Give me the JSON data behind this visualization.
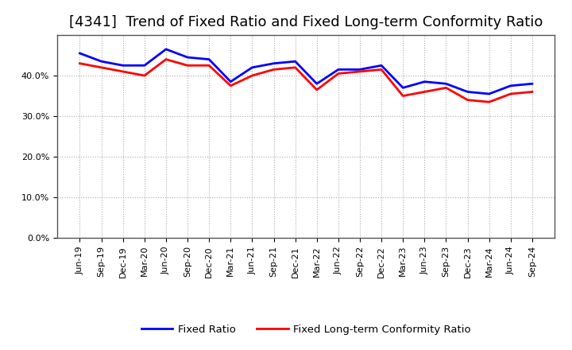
{
  "title": "[4341]  Trend of Fixed Ratio and Fixed Long-term Conformity Ratio",
  "x_labels": [
    "Jun-19",
    "Sep-19",
    "Dec-19",
    "Mar-20",
    "Jun-20",
    "Sep-20",
    "Dec-20",
    "Mar-21",
    "Jun-21",
    "Sep-21",
    "Dec-21",
    "Mar-22",
    "Jun-22",
    "Sep-22",
    "Dec-22",
    "Mar-23",
    "Jun-23",
    "Sep-23",
    "Dec-23",
    "Mar-24",
    "Jun-24",
    "Sep-24"
  ],
  "fixed_ratio": [
    45.5,
    43.5,
    42.5,
    42.5,
    46.5,
    44.5,
    44.0,
    38.5,
    42.0,
    43.0,
    43.5,
    38.0,
    41.5,
    41.5,
    42.5,
    37.0,
    38.5,
    38.0,
    36.0,
    35.5,
    37.5,
    38.0
  ],
  "fixed_longterm_ratio": [
    43.0,
    42.0,
    41.0,
    40.0,
    44.0,
    42.5,
    42.5,
    37.5,
    40.0,
    41.5,
    42.0,
    36.5,
    40.5,
    41.0,
    41.5,
    35.0,
    36.0,
    37.0,
    34.0,
    33.5,
    35.5,
    36.0
  ],
  "fixed_ratio_color": "#0000FF",
  "fixed_longterm_color": "#FF0000",
  "background_color": "#FFFFFF",
  "plot_bg_color": "#FFFFFF",
  "grid_color": "#AAAAAA",
  "ylim": [
    0,
    50
  ],
  "yticks": [
    0,
    10,
    20,
    30,
    40
  ],
  "ytick_labels": [
    "0.0%",
    "10.0%",
    "20.0%",
    "30.0%",
    "40.0%"
  ],
  "legend_fixed": "Fixed Ratio",
  "legend_longterm": "Fixed Long-term Conformity Ratio",
  "title_fontsize": 13,
  "tick_fontsize": 8,
  "legend_fontsize": 9.5,
  "linewidth": 2.0
}
